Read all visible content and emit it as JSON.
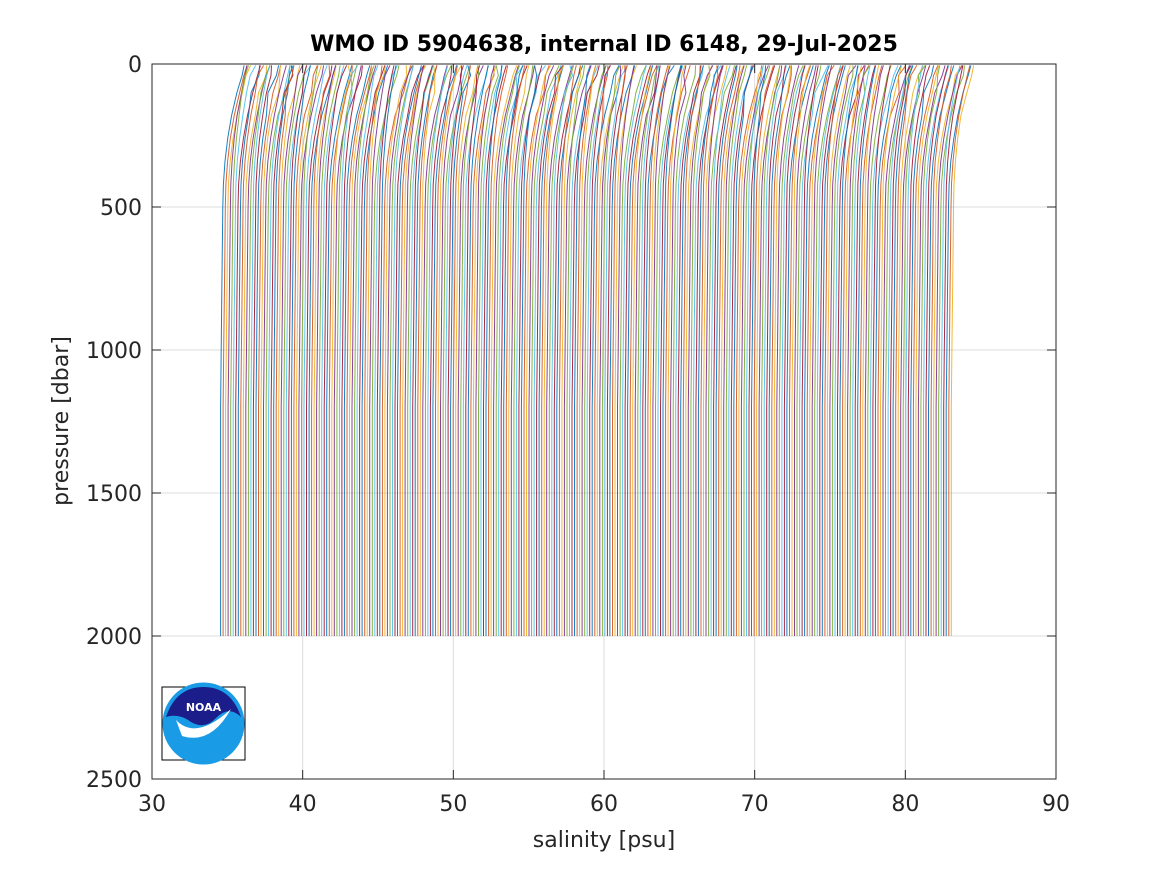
{
  "chart_data": {
    "type": "line",
    "title": "WMO ID 5904638, internal ID 6148, 29-Jul-2025",
    "xlabel": "salinity [psu]",
    "ylabel": "pressure [dbar]",
    "xlim": [
      30,
      90
    ],
    "ylim": [
      0,
      2500
    ],
    "y_reversed": true,
    "grid": true,
    "x_ticks": [
      30,
      40,
      50,
      60,
      70,
      80,
      90
    ],
    "y_ticks": [
      0,
      500,
      1000,
      1500,
      2000,
      2500
    ],
    "x_tick_labels": [
      "30",
      "40",
      "50",
      "60",
      "70",
      "80",
      "90"
    ],
    "y_tick_labels": [
      "0",
      "500",
      "1000",
      "1500",
      "2000",
      "2500"
    ],
    "offset_profiles": {
      "description": "waterfall of salinity profiles, each offset by a constant",
      "deep_salinity_first": 34.7,
      "deep_salinity_last": 83.2,
      "count": 290,
      "max_pressure": 2000,
      "near_surface_pressure": 5,
      "surface_excursion_psu": 1.3,
      "series_colors": [
        "#0072BD",
        "#D95319",
        "#EDB120",
        "#7E2F8E",
        "#77AC30",
        "#4DBEEE",
        "#A2142F"
      ]
    }
  },
  "logo": {
    "name": "NOAA",
    "text": "NOAA",
    "colors": {
      "dark": "#1b1e8a",
      "light": "#1a9be6"
    }
  }
}
